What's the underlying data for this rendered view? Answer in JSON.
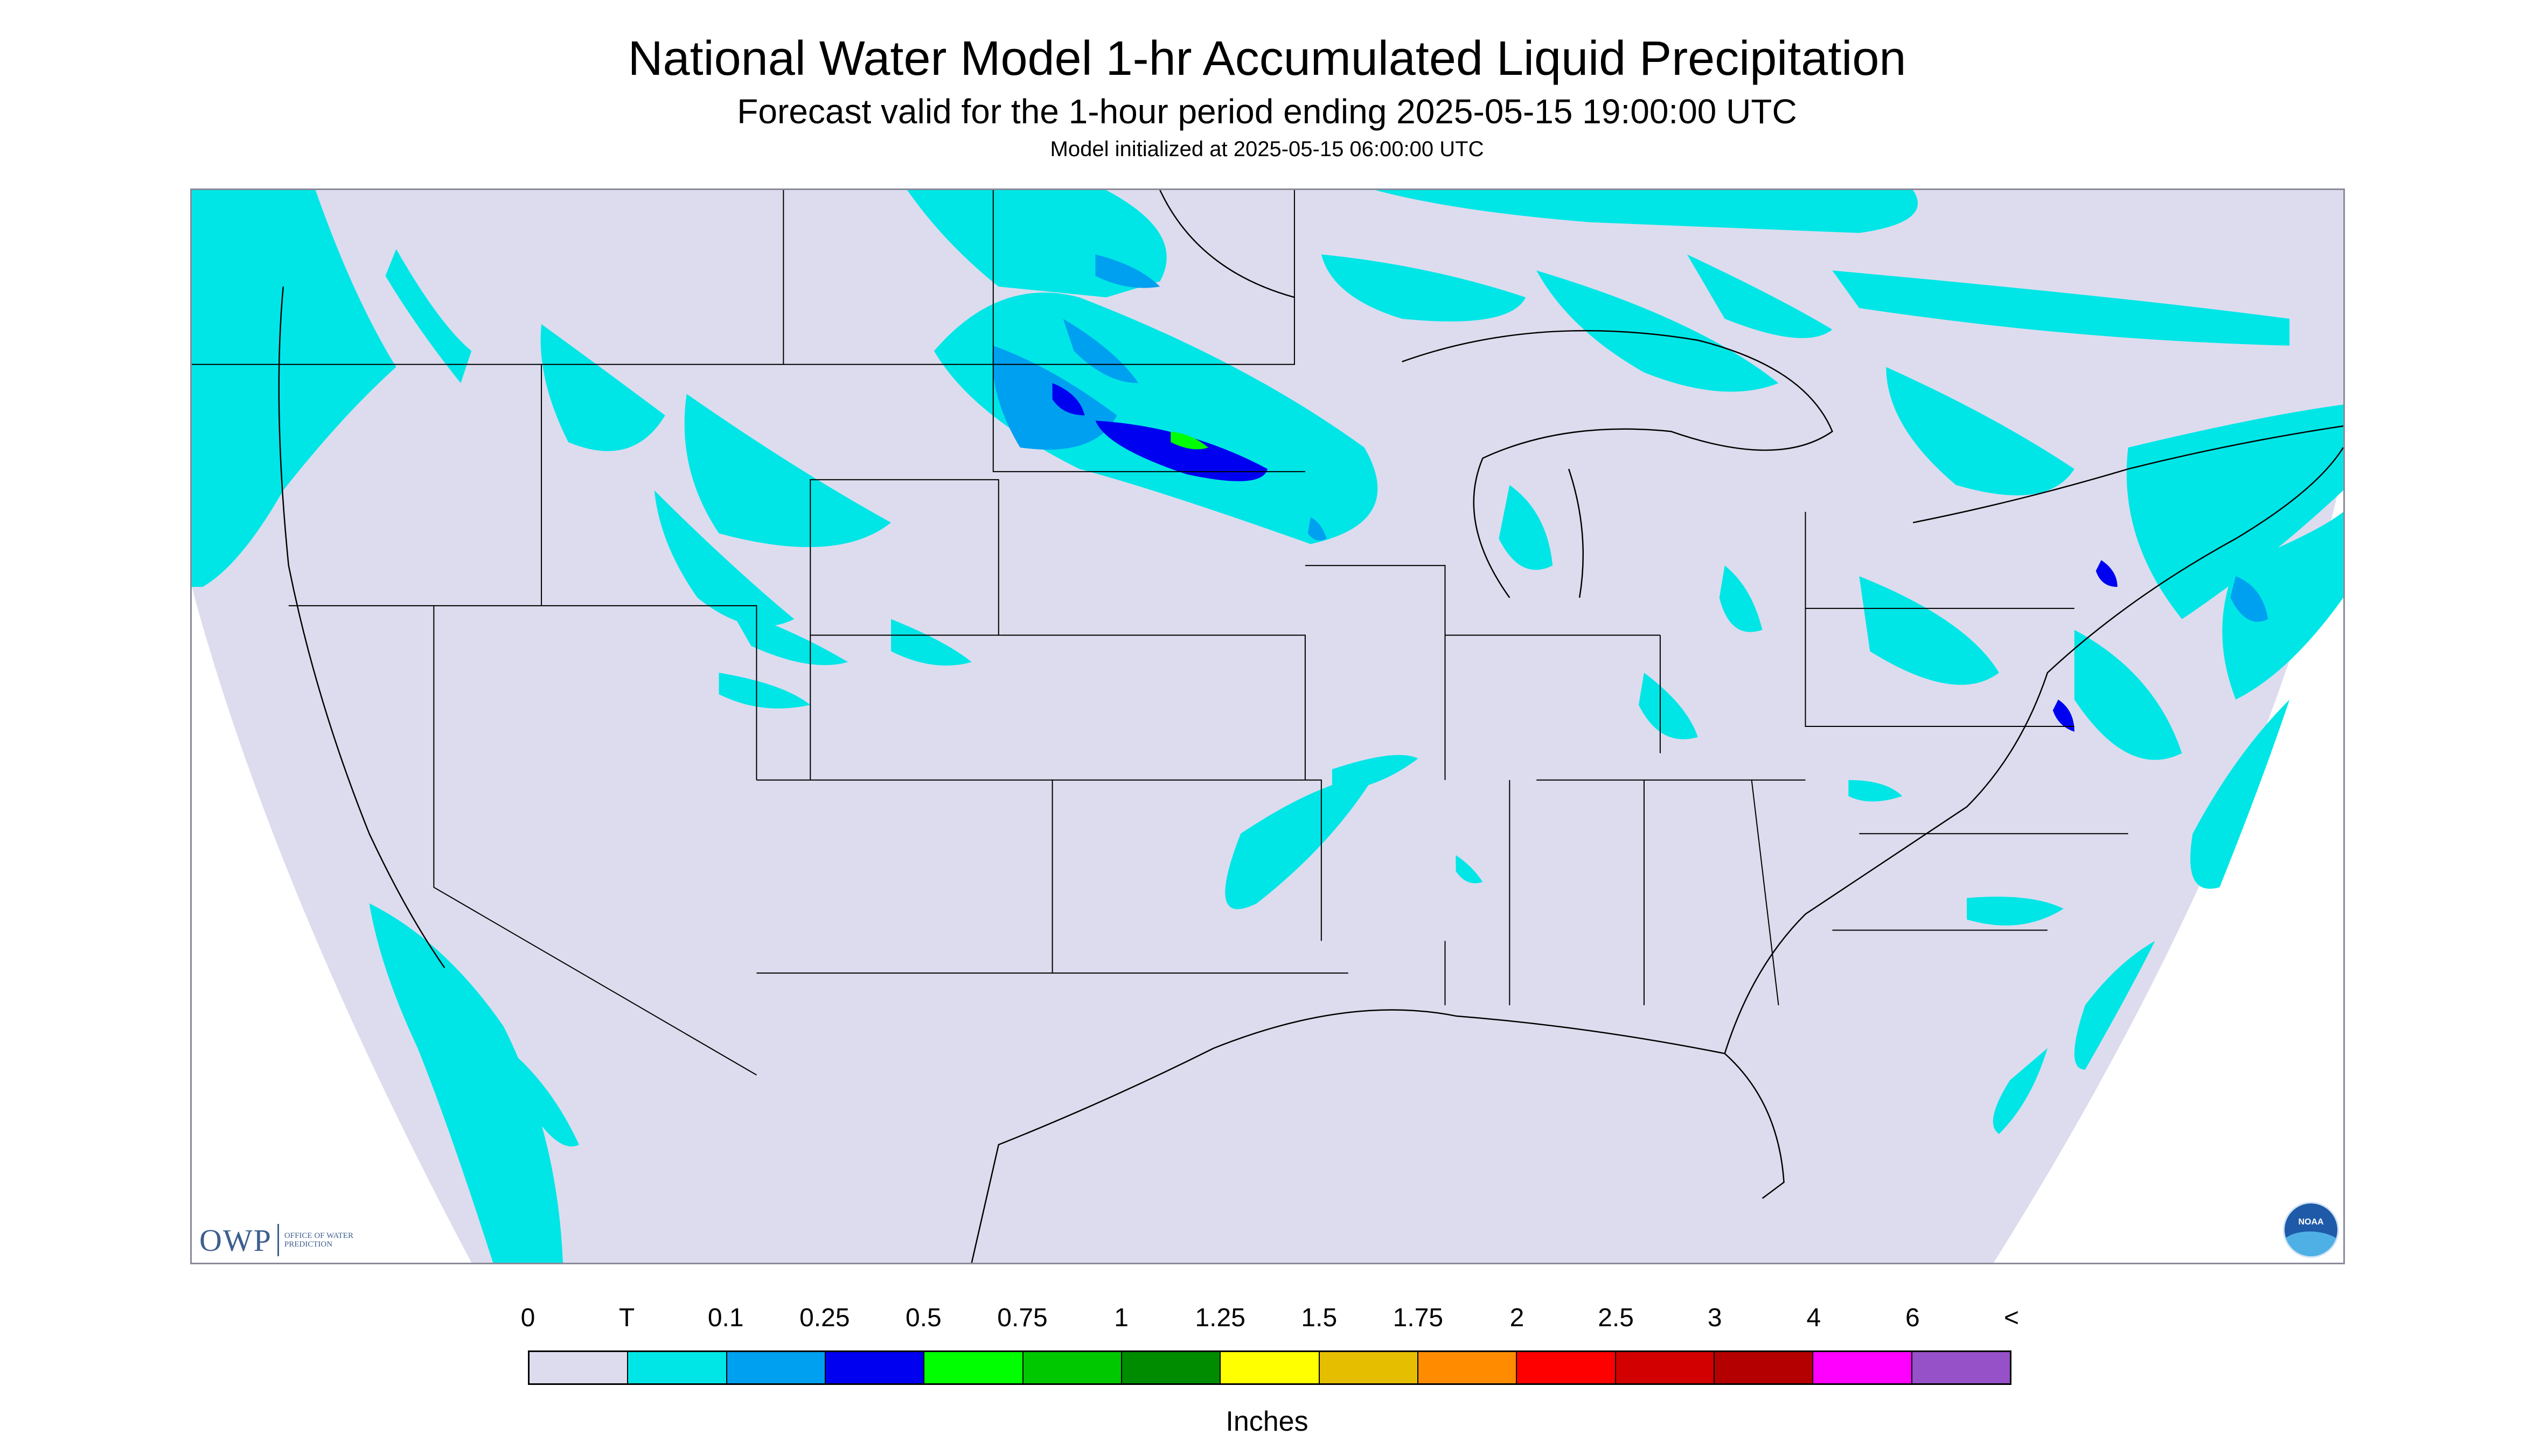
{
  "header": {
    "title": "National Water Model 1-hr Accumulated Liquid Precipitation",
    "subtitle": "Forecast valid for the 1-hour period ending 2025-05-15 19:00:00 UTC",
    "init": "Model initialized at 2025-05-15 06:00:00 UTC"
  },
  "logos": {
    "owp_main": "OWP",
    "owp_sub": "OFFICE OF WATER PREDICTION",
    "noaa": "NOAA"
  },
  "legend": {
    "labels": [
      "0",
      "T",
      "0.1",
      "0.25",
      "0.5",
      "0.75",
      "1",
      "1.25",
      "1.5",
      "1.75",
      "2",
      "2.5",
      "3",
      "4",
      "6",
      "<"
    ],
    "colors": [
      "#dcdcee",
      "#00e6e6",
      "#00a0f0",
      "#0000f0",
      "#00ff00",
      "#00c800",
      "#008c00",
      "#ffff00",
      "#e6be00",
      "#ff8c00",
      "#ff0000",
      "#d20000",
      "#b40000",
      "#ff00ff",
      "#9650c8"
    ],
    "units": "Inches"
  },
  "map": {
    "background_color": "#dcdcee",
    "offdomain_color": "#ffffff",
    "boundary_color": "#000000"
  }
}
